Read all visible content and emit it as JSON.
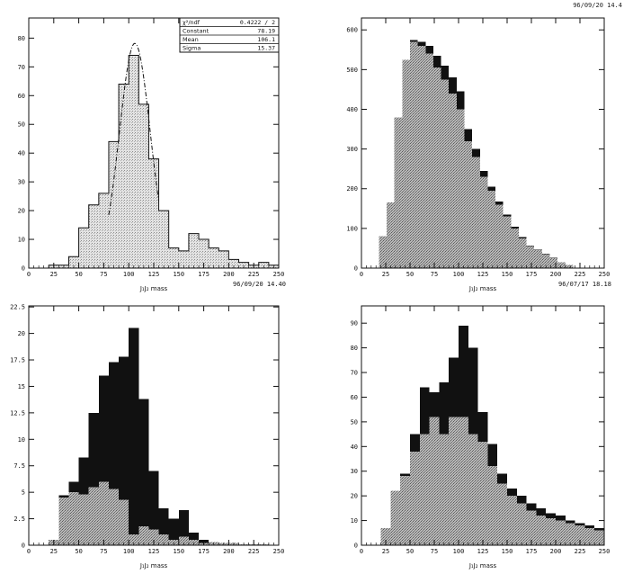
{
  "header": {
    "timestamp": "96/09/20  14.4"
  },
  "patterns": {
    "light": "#cfcfcf",
    "mid": "#9a9a9a",
    "dark": "#111111",
    "frame": "#111111"
  },
  "chart_data": [
    {
      "type": "bar",
      "subtype": "histogram",
      "xlabel": "J₁J₂ mass",
      "ylabel": "",
      "xlim": [
        0,
        250
      ],
      "ylim": [
        0,
        87
      ],
      "xticks": [
        0,
        25,
        50,
        75,
        100,
        125,
        150,
        175,
        200,
        225,
        250
      ],
      "yticks": [
        0,
        10,
        20,
        30,
        40,
        50,
        60,
        70,
        80
      ],
      "ytick_labels": [
        "0",
        "10",
        "20",
        "30",
        "40",
        "50",
        "60",
        "70",
        "80"
      ],
      "bin_width": 10,
      "x": [
        0,
        10,
        20,
        30,
        40,
        50,
        60,
        70,
        80,
        90,
        100,
        110,
        120,
        130,
        140,
        150,
        160,
        170,
        180,
        190,
        200,
        210,
        220,
        230,
        240
      ],
      "series": [
        {
          "fill": "light",
          "values": [
            0,
            0,
            1,
            1,
            4,
            14,
            22,
            26,
            44,
            64,
            74,
            57,
            38,
            20,
            7,
            6,
            12,
            10,
            7,
            6,
            3,
            2,
            1,
            2,
            1
          ]
        }
      ],
      "fit": {
        "type": "gaussian",
        "constant": 78.19,
        "mean": 106.1,
        "sigma": 15.37,
        "range": [
          80,
          130
        ]
      },
      "stats_box": [
        {
          "label": "χ²/ndf",
          "value": "0.4222  /  2"
        },
        {
          "label": "Constant",
          "value": "78.19"
        },
        {
          "label": "Mean",
          "value": "106.1"
        },
        {
          "label": "Sigma",
          "value": "15.37"
        }
      ],
      "timestamp": "96/09/20  14.40"
    },
    {
      "type": "bar",
      "subtype": "stacked histogram",
      "xlabel": "J₁J₂ mass",
      "ylabel": "",
      "xlim": [
        0,
        250
      ],
      "ylim": [
        0,
        630
      ],
      "xticks": [
        0,
        25,
        50,
        75,
        100,
        125,
        150,
        175,
        200,
        225,
        250
      ],
      "yticks": [
        0,
        100,
        200,
        300,
        400,
        500,
        600
      ],
      "ytick_labels": [
        "0",
        "100",
        "200",
        "300",
        "400",
        "500",
        "600"
      ],
      "bin_width": 8,
      "x": [
        18,
        26,
        34,
        42,
        50,
        58,
        66,
        74,
        82,
        90,
        98,
        106,
        114,
        122,
        130,
        138,
        146,
        154,
        162,
        170,
        178,
        186,
        194,
        202,
        210
      ],
      "series": [
        {
          "fill": "mid",
          "values": [
            80,
            165,
            380,
            525,
            570,
            560,
            540,
            505,
            475,
            440,
            400,
            320,
            280,
            230,
            195,
            160,
            130,
            100,
            75,
            55,
            45,
            35,
            25,
            15,
            8
          ]
        },
        {
          "fill": "dark",
          "values": [
            0,
            0,
            0,
            0,
            5,
            10,
            20,
            30,
            35,
            40,
            45,
            30,
            20,
            15,
            10,
            8,
            5,
            4,
            3,
            2,
            2,
            1,
            1,
            0,
            0
          ]
        }
      ],
      "timestamp": "96/07/17  18.18"
    },
    {
      "type": "bar",
      "subtype": "stacked histogram",
      "xlabel": "J₁J₂ mass",
      "ylabel": "",
      "xlim": [
        0,
        250
      ],
      "ylim": [
        0,
        22.6
      ],
      "xticks": [
        0,
        25,
        50,
        75,
        100,
        125,
        150,
        175,
        200,
        225,
        250
      ],
      "yticks": [
        0,
        2.5,
        5,
        7.5,
        10,
        12.5,
        15,
        17.5,
        20,
        22.5
      ],
      "ytick_labels": [
        "0",
        "2.5",
        "5",
        "7.5",
        "10",
        "12.5",
        "15",
        "17.5",
        "20",
        "22.5"
      ],
      "bin_width": 10,
      "x": [
        0,
        10,
        20,
        30,
        40,
        50,
        60,
        70,
        80,
        90,
        100,
        110,
        120,
        130,
        140,
        150,
        160,
        170,
        180,
        190,
        200,
        210,
        220,
        230,
        240
      ],
      "series": [
        {
          "fill": "mid",
          "values": [
            0,
            0,
            0.5,
            4.5,
            5.0,
            4.8,
            5.5,
            6.0,
            5.3,
            4.3,
            1.0,
            1.8,
            1.5,
            1.0,
            0.5,
            0.8,
            0.5,
            0.2,
            0.3,
            0.2,
            0.2,
            0.1,
            0.1,
            0.1,
            0
          ]
        },
        {
          "fill": "dark",
          "values": [
            0,
            0,
            0,
            0.2,
            1.0,
            3.5,
            7.0,
            10.0,
            12.0,
            13.5,
            19.5,
            12.0,
            5.5,
            2.5,
            2.0,
            2.5,
            0.7,
            0.3,
            0,
            0,
            0,
            0,
            0,
            0,
            0
          ]
        }
      ]
    },
    {
      "type": "bar",
      "subtype": "stacked histogram",
      "xlabel": "J₁J₂ mass",
      "ylabel": "",
      "xlim": [
        0,
        250
      ],
      "ylim": [
        0,
        97
      ],
      "xticks": [
        0,
        25,
        50,
        75,
        100,
        125,
        150,
        175,
        200,
        225,
        250
      ],
      "yticks": [
        0,
        10,
        20,
        30,
        40,
        50,
        60,
        70,
        80,
        90
      ],
      "ytick_labels": [
        "0",
        "10",
        "20",
        "30",
        "40",
        "50",
        "60",
        "70",
        "80",
        "90"
      ],
      "bin_width": 10,
      "x": [
        20,
        30,
        40,
        50,
        60,
        70,
        80,
        90,
        100,
        110,
        120,
        130,
        140,
        150,
        160,
        170,
        180,
        190,
        200,
        210,
        220,
        230,
        240
      ],
      "series": [
        {
          "fill": "mid",
          "values": [
            7,
            22,
            28,
            38,
            45,
            52,
            45,
            52,
            52,
            45,
            42,
            32,
            25,
            20,
            17,
            14,
            12,
            11,
            10,
            9,
            8,
            7,
            6
          ]
        },
        {
          "fill": "dark",
          "values": [
            0,
            0,
            1,
            7,
            19,
            10,
            21,
            24,
            37,
            35,
            12,
            9,
            4,
            3,
            3,
            3,
            3,
            2,
            2,
            1,
            1,
            1,
            1
          ]
        }
      ]
    }
  ]
}
